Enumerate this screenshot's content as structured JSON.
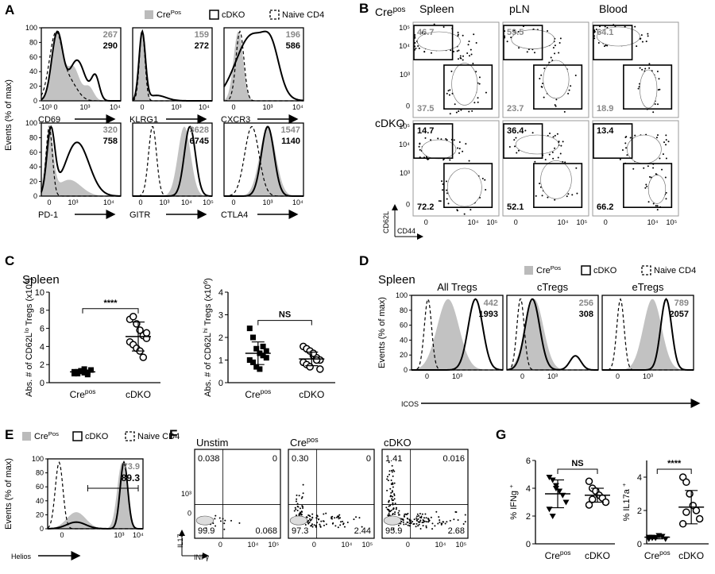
{
  "A": {
    "label": "A",
    "legend": [
      [
        "Cre",
        "Pos"
      ],
      "cDKO",
      "Naive CD4"
    ],
    "y_label": "Events (% of max)",
    "ylim": [
      0,
      100
    ],
    "yticks": [
      0,
      20,
      40,
      60,
      80,
      100
    ],
    "plots": [
      {
        "marker": "CD69",
        "xticks": [
          "-10³",
          "0",
          "10³",
          "10⁴"
        ],
        "mfi": [
          267,
          290
        ]
      },
      {
        "marker": "KLRG1",
        "xticks": [
          "0",
          "10³",
          "10⁴"
        ],
        "mfi": [
          159,
          272
        ]
      },
      {
        "marker": "CXCR3",
        "xticks": [
          "0",
          "10³",
          "10⁴"
        ],
        "mfi": [
          196,
          586
        ]
      },
      {
        "marker": "PD-1",
        "xticks": [
          "0",
          "10³",
          "10⁴"
        ],
        "mfi": [
          320,
          758
        ]
      },
      {
        "marker": "GITR",
        "xticks": [
          "0",
          "10³",
          "10⁴",
          "10⁵"
        ],
        "mfi": [
          3628,
          6745
        ]
      },
      {
        "marker": "CTLA4",
        "xticks": [
          "0",
          "10³",
          "10⁴"
        ],
        "mfi": [
          1547,
          1140
        ]
      }
    ]
  },
  "B": {
    "label": "B",
    "rows": [
      [
        "Cre",
        "pos"
      ],
      "cDKO"
    ],
    "columns": [
      "Spleen",
      "pLN",
      "Blood"
    ],
    "gates": [
      [
        [
          46.7,
          37.5
        ],
        [
          59.5,
          23.7
        ],
        [
          64.1,
          18.9
        ]
      ],
      [
        [
          14.7,
          72.2
        ],
        [
          36.4,
          52.1
        ],
        [
          13.4,
          66.2
        ]
      ]
    ],
    "yticks": [
      "10⁵",
      "10⁴",
      "10³",
      "0"
    ],
    "xticks": [
      "0",
      "10⁴",
      "10⁵"
    ],
    "y_label": "CD62L",
    "x_label": "CD44"
  },
  "C": {
    "label": "C",
    "tissue": "Spleen",
    "plots": [
      {
        "y_label": [
          "Abs. # of CD62L",
          "lo",
          " Tregs (x10",
          "6",
          ")"
        ],
        "ylim": [
          0,
          10
        ],
        "yticks": [
          0,
          2,
          4,
          6,
          8,
          10
        ],
        "significance": "****",
        "groups": [
          {
            "name": [
              "Cre",
              "pos"
            ],
            "values": [
              1.0,
              1.2,
              1.3,
              1.1,
              0.9,
              1.4,
              1.2,
              1.0,
              1.3,
              1.5,
              1.1
            ],
            "mean": 1.2,
            "sd": 0.2
          },
          {
            "name": "cDKO",
            "values": [
              7.0,
              7.3,
              6.5,
              5.8,
              5.2,
              4.9,
              4.5,
              4.2,
              3.8,
              3.5,
              2.8,
              5.5
            ],
            "mean": 5.1,
            "sd": 1.6
          }
        ]
      },
      {
        "y_label": [
          "Abs. # of CD62L",
          "hi",
          " Tregs (x10",
          "6",
          ")"
        ],
        "ylim": [
          0,
          4
        ],
        "yticks": [
          0,
          1,
          2,
          3,
          4
        ],
        "significance": "NS",
        "groups": [
          {
            "name": [
              "Cre",
              "pos"
            ],
            "values": [
              2.4,
              2.0,
              1.5,
              1.3,
              1.2,
              1.1,
              1.0,
              0.9,
              0.7,
              0.6,
              1.6,
              1.4
            ],
            "mean": 1.3,
            "sd": 0.5
          },
          {
            "name": "cDKO",
            "values": [
              1.6,
              1.5,
              1.4,
              1.2,
              1.1,
              1.0,
              0.9,
              0.8,
              0.7,
              1.3,
              1.0,
              0.6
            ],
            "mean": 1.05,
            "sd": 0.3
          }
        ]
      }
    ]
  },
  "D": {
    "label": "D",
    "tissue": "Spleen",
    "legend": [
      [
        "Cre",
        "Pos"
      ],
      "cDKO",
      "Naive CD4"
    ],
    "y_label": "Events (% of max)",
    "ylim": [
      0,
      100
    ],
    "yticks": [
      0,
      20,
      40,
      60,
      80,
      100
    ],
    "x_label": "ICOS",
    "plots": [
      {
        "title": "All Tregs",
        "xticks": [
          "0",
          "10³"
        ],
        "mfi": [
          442,
          1993
        ]
      },
      {
        "title": "cTregs",
        "xticks": [
          "0",
          "10³"
        ],
        "mfi": [
          256,
          308
        ]
      },
      {
        "title": "eTregs",
        "xticks": [
          "0",
          "10³"
        ],
        "mfi": [
          789,
          2057
        ]
      }
    ]
  },
  "E": {
    "label": "E",
    "legend": [
      [
        "Cre",
        "Pos"
      ],
      "cDKO",
      "Naive CD4"
    ],
    "y_label": "Events (% of max)",
    "ylim": [
      0,
      100
    ],
    "yticks": [
      0,
      20,
      40,
      60,
      80,
      100
    ],
    "x_label": "Helios",
    "xticks": [
      "0",
      "10³",
      "10⁴"
    ],
    "percent": [
      73.9,
      89.3
    ]
  },
  "F": {
    "label": "F",
    "y_label": "IL17",
    "x_label": "INFγ",
    "yticks": [
      "10³",
      "0"
    ],
    "xticks": [
      "0",
      "10⁴",
      "10⁵"
    ],
    "plots": [
      {
        "title": "Unstim",
        "quadrants": [
          "0.038",
          "0",
          "99.9",
          "0.068"
        ]
      },
      {
        "title": [
          "Cre",
          "pos"
        ],
        "quadrants": [
          "0.30",
          "0",
          "97.3",
          "2.44"
        ]
      },
      {
        "title": "cDKO",
        "quadrants": [
          "1.41",
          "0.016",
          "95.9",
          "2.68"
        ]
      }
    ]
  },
  "G": {
    "label": "G",
    "plots": [
      {
        "y_label": [
          "% IFNg ",
          "+"
        ],
        "ylim": [
          0,
          6
        ],
        "yticks": [
          0,
          2,
          4,
          6
        ],
        "significance": "NS",
        "groups": [
          {
            "name": [
              "Cre",
              "pos"
            ],
            "values": [
              4.8,
              4.6,
              4.2,
              3.8,
              3.5,
              3.0,
              2.5,
              2.0,
              4.0
            ],
            "mean": 3.6,
            "sd": 1.0
          },
          {
            "name": "cDKO",
            "values": [
              4.5,
              4.0,
              3.8,
              3.5,
              3.3,
              3.0,
              2.8,
              3.2
            ],
            "mean": 3.5,
            "sd": 0.5
          }
        ]
      },
      {
        "y_label": [
          "% IL17a ",
          "+"
        ],
        "ylim": [
          0,
          5
        ],
        "yticks": [
          0,
          2,
          4
        ],
        "significance": "****",
        "groups": [
          {
            "name": [
              "Cre",
              "pos"
            ],
            "values": [
              0.3,
              0.4,
              0.35,
              0.5,
              0.45,
              0.3,
              0.4,
              0.35
            ],
            "mean": 0.4,
            "sd": 0.1
          },
          {
            "name": "cDKO",
            "values": [
              4.0,
              3.7,
              3.0,
              2.3,
              2.0,
              1.5,
              1.2,
              1.9
            ],
            "mean": 2.2,
            "sd": 1.0
          }
        ]
      }
    ]
  }
}
